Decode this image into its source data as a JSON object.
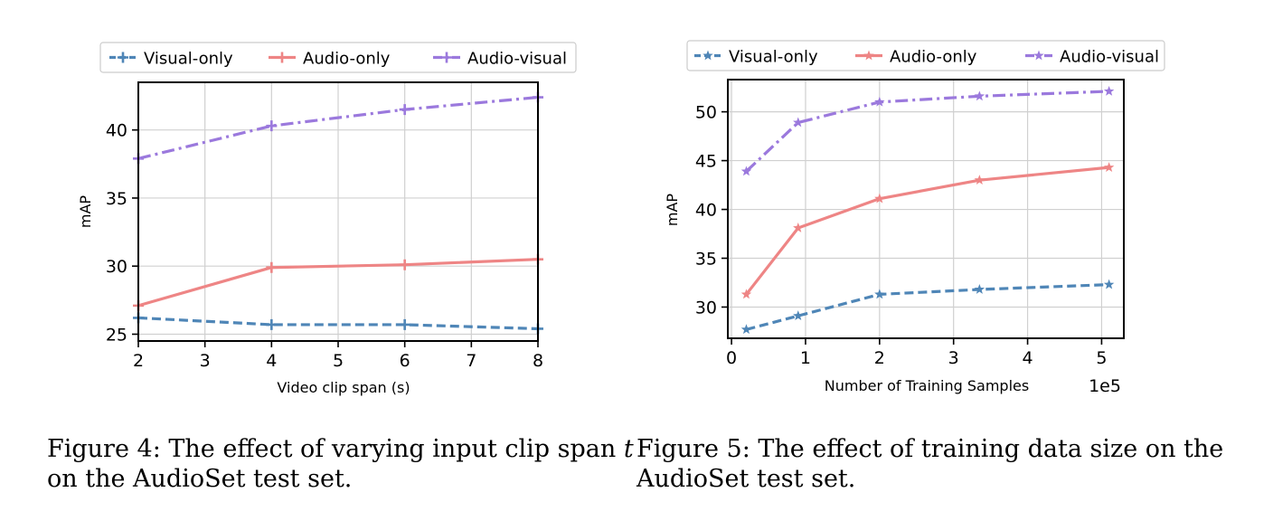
{
  "chart_data": [
    {
      "type": "line",
      "xlabel": "Video clip span (s)",
      "ylabel": "mAP",
      "xlim": [
        2,
        8
      ],
      "ylim": [
        24.5,
        43.5
      ],
      "xticks": [
        2,
        3,
        4,
        5,
        6,
        7,
        8
      ],
      "yticks": [
        25,
        30,
        35,
        40
      ],
      "grid": true,
      "legend_position": "top",
      "series": [
        {
          "name": "Visual-only",
          "marker": "plus",
          "style": "dashed",
          "color": "#4f86b7",
          "x": [
            2,
            4,
            6,
            8
          ],
          "y": [
            26.2,
            25.7,
            25.7,
            25.4
          ]
        },
        {
          "name": "Audio-only",
          "marker": "plus",
          "style": "solid",
          "color": "#ee8585",
          "x": [
            2,
            4,
            6,
            8
          ],
          "y": [
            27.1,
            29.9,
            30.1,
            30.5
          ]
        },
        {
          "name": "Audio-visual",
          "marker": "plus",
          "style": "dashdot",
          "color": "#9b79dd",
          "x": [
            2,
            4,
            6,
            8
          ],
          "y": [
            37.9,
            40.3,
            41.5,
            42.4
          ]
        }
      ]
    },
    {
      "type": "line",
      "xlabel": "Number of Training Samples",
      "ylabel": "mAP",
      "x_scale_label": "1e5",
      "xlim": [
        -0.05,
        5.3
      ],
      "ylim": [
        26.8,
        53.3
      ],
      "xticks": [
        0,
        1,
        2,
        3,
        4,
        5
      ],
      "yticks": [
        30,
        35,
        40,
        45,
        50
      ],
      "grid": true,
      "legend_position": "top",
      "series": [
        {
          "name": "Visual-only",
          "marker": "star",
          "style": "dashed",
          "color": "#4f86b7",
          "x": [
            0.2,
            0.9,
            2.0,
            3.35,
            5.1
          ],
          "y": [
            27.7,
            29.1,
            31.3,
            31.8,
            32.3
          ]
        },
        {
          "name": "Audio-only",
          "marker": "star",
          "style": "solid",
          "color": "#ee8585",
          "x": [
            0.2,
            0.9,
            2.0,
            3.35,
            5.1
          ],
          "y": [
            31.3,
            38.1,
            41.1,
            43.0,
            44.3
          ]
        },
        {
          "name": "Audio-visual",
          "marker": "star",
          "style": "dashdot",
          "color": "#9b79dd",
          "x": [
            0.2,
            0.9,
            2.0,
            3.35,
            5.1
          ],
          "y": [
            43.9,
            48.9,
            51.0,
            51.6,
            52.1
          ]
        }
      ]
    }
  ],
  "captions": {
    "fig4_line1_prefix": "Figure 4: The effect of varying input clip span ",
    "fig4_var": "t",
    "fig4_line2": "on the AudioSet test set.",
    "fig5_line1": "Figure 5: The effect of training data size on the",
    "fig5_line2": "AudioSet test set."
  }
}
